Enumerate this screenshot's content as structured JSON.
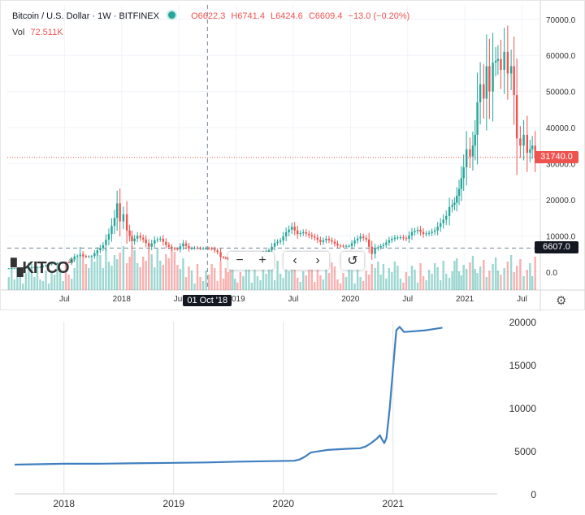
{
  "chart_data": [
    {
      "type": "candlestick",
      "symbol": "Bitcoin / U.S. Dollar",
      "interval": "1W",
      "exchange": "BITFINEX",
      "ohlc": {
        "o": "O6622.3",
        "h": "H6741.4",
        "l": "L6424.6",
        "c": "C6609.4",
        "chg": "−13.0 (−0.20%)"
      },
      "volume_label": "Vol",
      "volume_value": "72.511K",
      "y_ticks": [
        "70000.0",
        "60000.0",
        "50000.0",
        "40000.0",
        "30000.0",
        "20000.0",
        "10000.0",
        "0.0"
      ],
      "y_tick_values": [
        70000,
        60000,
        50000,
        40000,
        30000,
        20000,
        10000,
        0
      ],
      "ylim": [
        -5000,
        74000
      ],
      "x_ticks": [
        "Jul",
        "2018",
        "Jul",
        "2019",
        "Jul",
        "2020",
        "Jul",
        "2021",
        "Jul"
      ],
      "x_tick_dates": [
        2017.5,
        2018.0,
        2018.5,
        2019.0,
        2019.5,
        2020.0,
        2020.5,
        2021.0,
        2021.5
      ],
      "xlim": [
        2017.0,
        2021.66
      ],
      "last_price": "31740.0",
      "last_price_value": 31740,
      "crosshair_price": "6607.0",
      "crosshair_price_value": 6607,
      "crosshair_date": "01 Oct '18",
      "crosshair_date_value": 2018.75,
      "price_points": [
        [
          2017.0,
          1000
        ],
        [
          2017.1,
          1050
        ],
        [
          2017.2,
          1200
        ],
        [
          2017.3,
          1400
        ],
        [
          2017.4,
          2300
        ],
        [
          2017.45,
          2500
        ],
        [
          2017.5,
          2700
        ],
        [
          2017.55,
          2600
        ],
        [
          2017.6,
          4300
        ],
        [
          2017.65,
          4700
        ],
        [
          2017.7,
          4200
        ],
        [
          2017.75,
          4400
        ],
        [
          2017.8,
          6000
        ],
        [
          2017.85,
          7400
        ],
        [
          2017.9,
          10500
        ],
        [
          2017.95,
          15000
        ],
        [
          2017.97,
          19000
        ],
        [
          2018.0,
          14000
        ],
        [
          2018.03,
          16000
        ],
        [
          2018.06,
          11500
        ],
        [
          2018.1,
          8500
        ],
        [
          2018.15,
          10000
        ],
        [
          2018.2,
          9000
        ],
        [
          2018.25,
          7000
        ],
        [
          2018.3,
          8800
        ],
        [
          2018.35,
          9200
        ],
        [
          2018.4,
          7500
        ],
        [
          2018.45,
          6500
        ],
        [
          2018.5,
          6300
        ],
        [
          2018.55,
          7900
        ],
        [
          2018.6,
          6500
        ],
        [
          2018.65,
          6700
        ],
        [
          2018.7,
          6500
        ],
        [
          2018.75,
          6600
        ],
        [
          2018.8,
          6400
        ],
        [
          2018.85,
          5500
        ],
        [
          2018.88,
          4100
        ],
        [
          2018.92,
          3800
        ],
        [
          2018.96,
          3400
        ],
        [
          2019.0,
          3700
        ],
        [
          2019.05,
          3500
        ],
        [
          2019.1,
          3800
        ],
        [
          2019.15,
          3950
        ],
        [
          2019.2,
          4100
        ],
        [
          2019.25,
          5200
        ],
        [
          2019.3,
          6000
        ],
        [
          2019.35,
          8000
        ],
        [
          2019.4,
          8700
        ],
        [
          2019.45,
          11000
        ],
        [
          2019.5,
          12500
        ],
        [
          2019.55,
          10500
        ],
        [
          2019.6,
          11000
        ],
        [
          2019.65,
          10200
        ],
        [
          2019.7,
          9500
        ],
        [
          2019.75,
          8300
        ],
        [
          2019.8,
          9200
        ],
        [
          2019.85,
          8400
        ],
        [
          2019.9,
          7300
        ],
        [
          2019.95,
          7200
        ],
        [
          2020.0,
          7200
        ],
        [
          2020.05,
          8700
        ],
        [
          2020.1,
          9800
        ],
        [
          2020.15,
          9000
        ],
        [
          2020.2,
          5000
        ],
        [
          2020.23,
          6500
        ],
        [
          2020.3,
          7500
        ],
        [
          2020.35,
          8800
        ],
        [
          2020.4,
          9500
        ],
        [
          2020.45,
          9600
        ],
        [
          2020.5,
          9200
        ],
        [
          2020.55,
          11000
        ],
        [
          2020.6,
          11700
        ],
        [
          2020.65,
          10500
        ],
        [
          2020.7,
          10800
        ],
        [
          2020.75,
          11500
        ],
        [
          2020.8,
          13500
        ],
        [
          2020.85,
          15500
        ],
        [
          2020.88,
          18000
        ],
        [
          2020.92,
          19200
        ],
        [
          2020.96,
          23000
        ],
        [
          2021.0,
          29000
        ],
        [
          2021.03,
          34000
        ],
        [
          2021.06,
          32000
        ],
        [
          2021.1,
          38000
        ],
        [
          2021.12,
          47000
        ],
        [
          2021.15,
          52000
        ],
        [
          2021.18,
          48000
        ],
        [
          2021.2,
          57000
        ],
        [
          2021.23,
          50000
        ],
        [
          2021.26,
          58000
        ],
        [
          2021.3,
          59000
        ],
        [
          2021.33,
          56000
        ],
        [
          2021.36,
          61000
        ],
        [
          2021.39,
          55000
        ],
        [
          2021.42,
          57000
        ],
        [
          2021.44,
          49000
        ],
        [
          2021.47,
          37000
        ],
        [
          2021.5,
          35000
        ],
        [
          2021.53,
          38000
        ],
        [
          2021.56,
          33000
        ],
        [
          2021.6,
          35000
        ],
        [
          2021.63,
          31740
        ]
      ]
    },
    {
      "type": "line",
      "x_ticks": [
        "2018",
        "2019",
        "2020",
        "2021"
      ],
      "x_tick_dates": [
        2018.0,
        2019.0,
        2020.0,
        2021.0
      ],
      "xlim": [
        2017.55,
        2021.95
      ],
      "y_ticks": [
        "20000",
        "15000",
        "10000",
        "5000",
        "0"
      ],
      "y_tick_values": [
        20000,
        15000,
        10000,
        5000,
        0
      ],
      "ylim": [
        0,
        20000
      ],
      "series": [
        {
          "color": "#3f7fbf",
          "points": [
            [
              2017.55,
              3400
            ],
            [
              2017.8,
              3450
            ],
            [
              2018.0,
              3500
            ],
            [
              2018.3,
              3500
            ],
            [
              2018.6,
              3550
            ],
            [
              2019.0,
              3600
            ],
            [
              2019.3,
              3650
            ],
            [
              2019.6,
              3750
            ],
            [
              2019.9,
              3800
            ],
            [
              2020.1,
              3850
            ],
            [
              2020.15,
              4000
            ],
            [
              2020.2,
              4350
            ],
            [
              2020.25,
              4800
            ],
            [
              2020.4,
              5100
            ],
            [
              2020.6,
              5250
            ],
            [
              2020.7,
              5300
            ],
            [
              2020.75,
              5500
            ],
            [
              2020.8,
              5900
            ],
            [
              2020.85,
              6400
            ],
            [
              2020.88,
              6800
            ],
            [
              2020.9,
              6300
            ],
            [
              2020.92,
              5900
            ],
            [
              2020.94,
              6500
            ],
            [
              2020.97,
              10000
            ],
            [
              2021.0,
              14500
            ],
            [
              2021.03,
              19000
            ],
            [
              2021.06,
              19400
            ],
            [
              2021.1,
              18800
            ],
            [
              2021.2,
              18900
            ],
            [
              2021.3,
              19000
            ],
            [
              2021.45,
              19300
            ]
          ]
        }
      ]
    }
  ]
}
